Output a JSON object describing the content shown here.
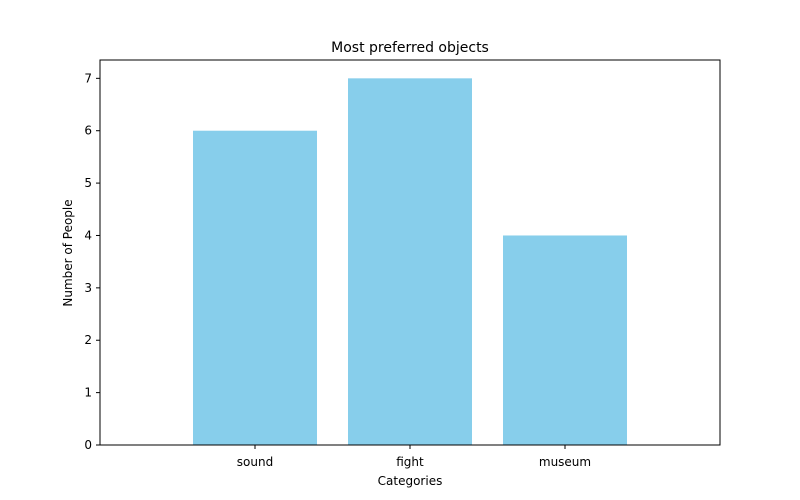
{
  "chart_data": {
    "type": "bar",
    "title": "Most preferred objects",
    "xlabel": "Categories",
    "ylabel": "Number of People",
    "categories": [
      "sound",
      "fight",
      "museum"
    ],
    "values": [
      6,
      7,
      4
    ],
    "ylim": [
      0,
      7.35
    ],
    "yticks": [
      0,
      1,
      2,
      3,
      4,
      5,
      6,
      7
    ],
    "grid": false,
    "legend": "none",
    "colors": {
      "bar": "#87CEEB",
      "axis": "#000000",
      "background": "#ffffff"
    }
  }
}
